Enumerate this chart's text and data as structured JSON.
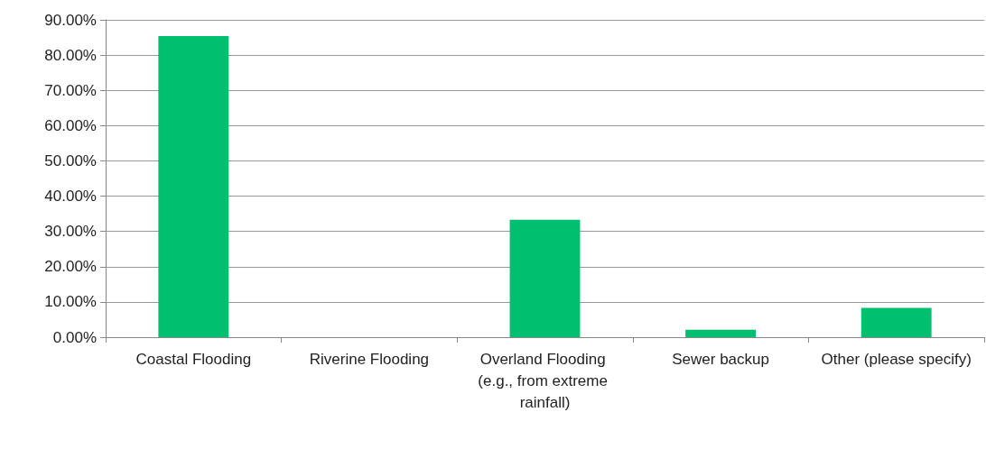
{
  "chart_data": {
    "type": "bar",
    "categories": [
      "Coastal Flooding",
      "Riverine Flooding",
      "Overland Flooding (e.g., from extreme rainfall)",
      "Sewer backup",
      "Other (please specify)"
    ],
    "values": [
      85.4,
      0,
      33.3,
      2.1,
      8.3
    ],
    "color": "#00bf6f",
    "ylim": [
      0,
      90
    ],
    "yticks": [
      {
        "value": 0,
        "label": "0.00%"
      },
      {
        "value": 10,
        "label": "10.00%"
      },
      {
        "value": 20,
        "label": "20.00%"
      },
      {
        "value": 30,
        "label": "30.00%"
      },
      {
        "value": 40,
        "label": "40.00%"
      },
      {
        "value": 50,
        "label": "50.00%"
      },
      {
        "value": 60,
        "label": "60.00%"
      },
      {
        "value": 70,
        "label": "70.00%"
      },
      {
        "value": 80,
        "label": "80.00%"
      },
      {
        "value": 90,
        "label": "90.00%"
      }
    ],
    "grid": "y"
  }
}
